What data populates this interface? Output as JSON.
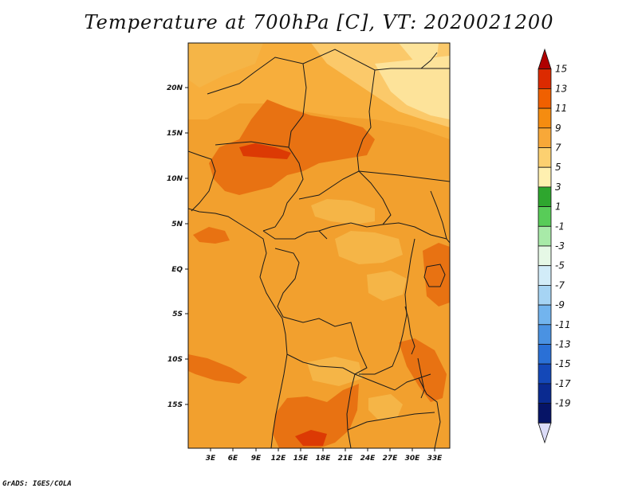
{
  "title": "Temperature at 700hPa [C], VT: 2020021200",
  "credit": "GrADS: IGES/COLA",
  "map": {
    "lat_ticks": [
      "20N",
      "15N",
      "10N",
      "5N",
      "EQ",
      "5S",
      "10S",
      "15S"
    ],
    "lon_ticks": [
      "3E",
      "6E",
      "9E",
      "12E",
      "15E",
      "18E",
      "21E",
      "24E",
      "27E",
      "30E",
      "33E"
    ]
  },
  "colorbar": {
    "labels": [
      "15",
      "13",
      "11",
      "9",
      "7",
      "5",
      "3",
      "1",
      "-1",
      "-3",
      "-5",
      "-7",
      "-9",
      "-11",
      "-13",
      "-15",
      "-17",
      "-19"
    ],
    "colors": [
      "#b00000",
      "#dc2a00",
      "#f06000",
      "#f58c10",
      "#f8a838",
      "#fcd070",
      "#fff0b0",
      "#2ea62e",
      "#58cc58",
      "#a8eaa8",
      "#e6f8e6",
      "#d2ecf8",
      "#a6d4f4",
      "#72b4ee",
      "#4a92e2",
      "#2a70d6",
      "#1448b8",
      "#0a2a90",
      "#061466",
      "#dcdcf8"
    ],
    "field_palette": [
      "#f2a02e",
      "#f7ae3c",
      "#e87212",
      "#f5b547",
      "#fbc96a",
      "#fde39a"
    ]
  }
}
